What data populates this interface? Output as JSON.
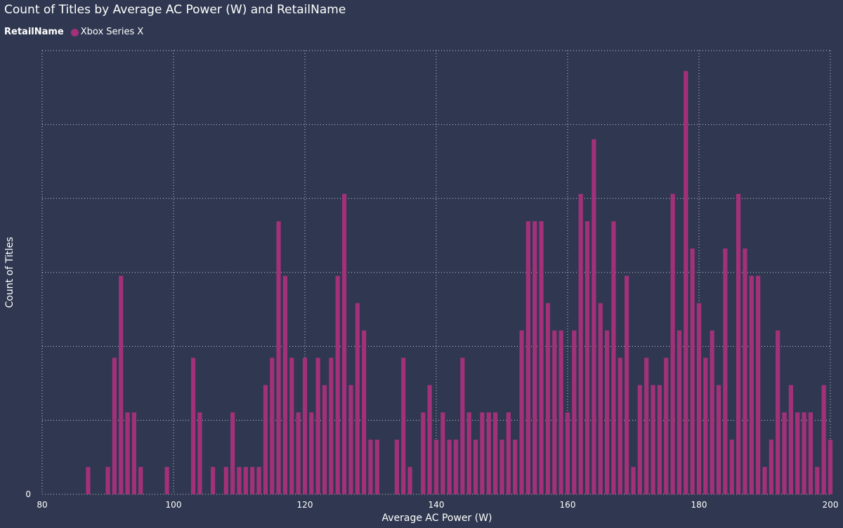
{
  "title": "Count of Titles by Average AC Power (W) and RetailName",
  "legend": {
    "title": "RetailName",
    "items": [
      {
        "label": "Xbox Series X",
        "color": "#a3317a"
      }
    ]
  },
  "chart_data": {
    "type": "bar",
    "xlabel": "Average AC Power (W)",
    "ylabel": "Count of Titles",
    "xlim": [
      80,
      200
    ],
    "x_ticks": [
      80,
      100,
      120,
      140,
      160,
      180,
      200
    ],
    "y_tick_labels": [
      "0"
    ],
    "ylim": [
      0,
      6.5
    ],
    "grid": true,
    "legend_position": "top-left",
    "series": [
      {
        "name": "Xbox Series X",
        "color": "#a3317a",
        "points": [
          [
            87,
            0.4
          ],
          [
            90,
            0.4
          ],
          [
            91,
            2
          ],
          [
            92,
            3.2
          ],
          [
            93,
            1.2
          ],
          [
            94,
            1.2
          ],
          [
            95,
            0.4
          ],
          [
            99,
            0.4
          ],
          [
            103,
            2
          ],
          [
            104,
            1.2
          ],
          [
            106,
            0.4
          ],
          [
            108,
            0.4
          ],
          [
            109,
            1.2
          ],
          [
            110,
            0.4
          ],
          [
            111,
            0.4
          ],
          [
            112,
            0.4
          ],
          [
            113,
            0.4
          ],
          [
            114,
            1.6
          ],
          [
            115,
            2
          ],
          [
            116,
            4
          ],
          [
            117,
            3.2
          ],
          [
            118,
            2
          ],
          [
            119,
            1.2
          ],
          [
            120,
            2
          ],
          [
            121,
            1.2
          ],
          [
            122,
            2
          ],
          [
            123,
            1.6
          ],
          [
            124,
            2
          ],
          [
            125,
            3.2
          ],
          [
            126,
            4.4
          ],
          [
            127,
            1.6
          ],
          [
            128,
            2.8
          ],
          [
            129,
            2.4
          ],
          [
            130,
            0.8
          ],
          [
            131,
            0.8
          ],
          [
            134,
            0.8
          ],
          [
            135,
            2
          ],
          [
            136,
            0.4
          ],
          [
            138,
            1.2
          ],
          [
            139,
            1.6
          ],
          [
            140,
            0.8
          ],
          [
            141,
            1.2
          ],
          [
            142,
            0.8
          ],
          [
            143,
            0.8
          ],
          [
            144,
            2
          ],
          [
            145,
            1.2
          ],
          [
            146,
            0.8
          ],
          [
            147,
            1.2
          ],
          [
            148,
            1.2
          ],
          [
            149,
            1.2
          ],
          [
            150,
            0.8
          ],
          [
            151,
            1.2
          ],
          [
            152,
            0.8
          ],
          [
            153,
            2.4
          ],
          [
            154,
            4
          ],
          [
            155,
            4
          ],
          [
            156,
            4
          ],
          [
            157,
            2.8
          ],
          [
            158,
            2.4
          ],
          [
            159,
            2.4
          ],
          [
            160,
            1.2
          ],
          [
            161,
            2.4
          ],
          [
            162,
            4.4
          ],
          [
            163,
            4
          ],
          [
            164,
            5.2
          ],
          [
            165,
            2.8
          ],
          [
            166,
            2.4
          ],
          [
            167,
            4
          ],
          [
            168,
            2
          ],
          [
            169,
            3.2
          ],
          [
            170,
            0.4
          ],
          [
            171,
            1.6
          ],
          [
            172,
            2
          ],
          [
            173,
            1.6
          ],
          [
            174,
            1.6
          ],
          [
            175,
            2
          ],
          [
            176,
            4.4
          ],
          [
            177,
            2.4
          ],
          [
            178,
            6.2
          ],
          [
            179,
            3.6
          ],
          [
            180,
            2.8
          ],
          [
            181,
            2
          ],
          [
            182,
            2.4
          ],
          [
            183,
            1.6
          ],
          [
            184,
            3.6
          ],
          [
            185,
            0.8
          ],
          [
            186,
            4.4
          ],
          [
            187,
            3.6
          ],
          [
            188,
            3.2
          ],
          [
            189,
            3.2
          ],
          [
            190,
            0.4
          ],
          [
            191,
            0.8
          ],
          [
            192,
            2.4
          ],
          [
            193,
            1.2
          ],
          [
            194,
            1.6
          ],
          [
            195,
            1.2
          ],
          [
            196,
            1.2
          ],
          [
            197,
            1.2
          ],
          [
            198,
            0.4
          ],
          [
            199,
            1.6
          ],
          [
            200,
            0.8
          ]
        ]
      }
    ]
  }
}
